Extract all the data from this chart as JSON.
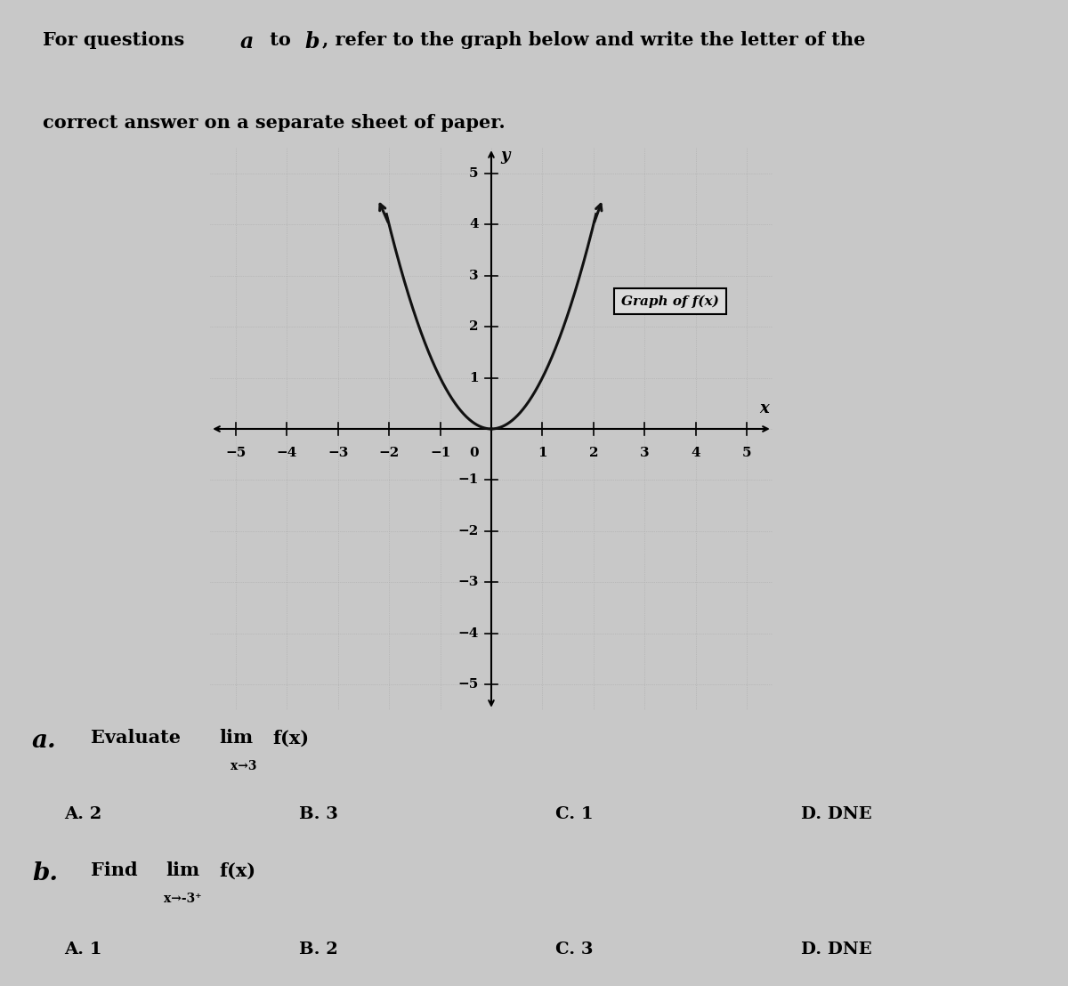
{
  "bg_color": "#c8c8c8",
  "graph_bg": "#dcdcdc",
  "qa_bg": "#b0b0b0",
  "top_bg": "#c8c8c8",
  "curve_color": "#111111",
  "graph_label": "Graph of f(x)",
  "question_a_label": "a.",
  "question_a_text": "Evaluate lim f(x)",
  "question_a_sub": "x→3",
  "question_a_choices": [
    "A. 2",
    "B. 3",
    "C. 1",
    "D. DNE"
  ],
  "question_b_label": "b.",
  "question_b_text": "Find  lim  f(x)",
  "question_b_sub": "x→-3⁺",
  "question_b_choices": [
    "A. 1",
    "B. 2",
    "C. 3",
    "D. DNE"
  ],
  "instr_line1_pre": "For questions ",
  "instr_a": "a",
  "instr_to": " to ",
  "instr_b": "b",
  "instr_line1_post": ", refer to the graph below and write the letter of the",
  "instr_line2": "correct answer on a separate sheet of paper."
}
